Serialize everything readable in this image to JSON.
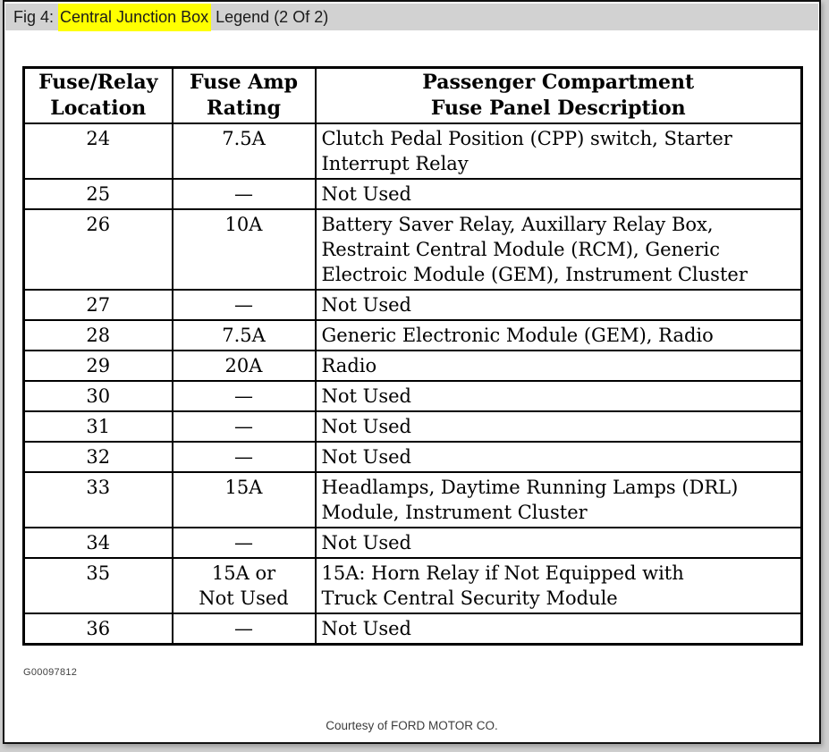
{
  "header": {
    "prefix": "Fig 4: ",
    "highlight": "Central Junction Box",
    "suffix": " Legend (2 Of 2)"
  },
  "table": {
    "columns": [
      "Fuse/Relay\nLocation",
      "Fuse Amp\nRating",
      "Passenger Compartment\nFuse Panel Description"
    ],
    "rows": [
      {
        "location": "24",
        "rating": "7.5A",
        "description": "Clutch Pedal Position (CPP) switch, Starter\nInterrupt Relay"
      },
      {
        "location": "25",
        "rating": "—",
        "description": "Not Used"
      },
      {
        "location": "26",
        "rating": "10A",
        "description": "Battery Saver Relay, Auxillary Relay Box,\nRestraint Central Module (RCM), Generic\nElectroic Module (GEM), Instrument Cluster"
      },
      {
        "location": "27",
        "rating": "—",
        "description": "Not Used"
      },
      {
        "location": "28",
        "rating": "7.5A",
        "description": "Generic Electronic Module (GEM), Radio"
      },
      {
        "location": "29",
        "rating": "20A",
        "description": "Radio"
      },
      {
        "location": "30",
        "rating": "—",
        "description": "Not Used"
      },
      {
        "location": "31",
        "rating": "—",
        "description": "Not Used"
      },
      {
        "location": "32",
        "rating": "—",
        "description": "Not Used"
      },
      {
        "location": "33",
        "rating": "15A",
        "description": "Headlamps, Daytime Running Lamps (DRL)\nModule, Instrument Cluster"
      },
      {
        "location": "34",
        "rating": "—",
        "description": "Not Used"
      },
      {
        "location": "35",
        "rating": "15A or\nNot Used",
        "description": "15A: Horn Relay if Not Equipped with\nTruck Central Security Module"
      },
      {
        "location": "36",
        "rating": "—",
        "description": "Not Used"
      }
    ]
  },
  "footer": {
    "figure_code": "G00097812",
    "courtesy": "Courtesy of FORD MOTOR CO."
  },
  "colors": {
    "title_bar_bg": "#d2d2d2",
    "highlight_bg": "#ffff00",
    "table_border": "#000000",
    "page_bg": "#ffffff"
  }
}
